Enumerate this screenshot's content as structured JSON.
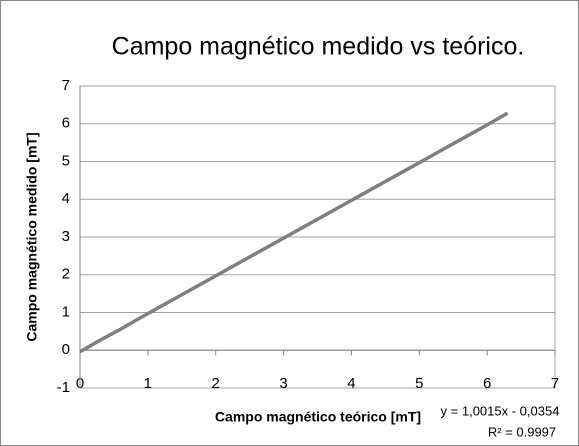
{
  "chart_data": {
    "type": "line",
    "title": "Campo magnético medido vs teórico.",
    "x_label": "Campo magnético teórico [mT]",
    "y_label": "Campo magnético medido [mT]",
    "annotations": [
      "y = 1,0015x - 0,0354",
      "R² = 0.9997"
    ],
    "x": [
      0,
      0.3,
      0.6,
      0.9,
      1.2,
      1.5,
      1.8,
      2.1,
      2.4,
      2.7,
      3.0,
      3.3,
      3.6,
      3.9,
      4.2,
      4.5,
      4.8,
      5.1,
      5.4,
      5.7,
      6.0,
      6.3
    ],
    "series": [
      {
        "name": "Campo magnético medido",
        "color": "#7f7f7f",
        "values": [
          -0.04,
          0.27,
          0.56,
          0.87,
          1.17,
          1.47,
          1.77,
          2.07,
          2.37,
          2.67,
          2.97,
          3.27,
          3.57,
          3.87,
          4.17,
          4.47,
          4.77,
          5.07,
          5.37,
          5.67,
          5.97,
          6.28
        ]
      }
    ],
    "xlim": [
      0,
      7
    ],
    "xticks": [
      0,
      1,
      2,
      3,
      4,
      5,
      6,
      7
    ],
    "ylim": [
      -1,
      7
    ],
    "yticks": [
      -1,
      0,
      1,
      2,
      3,
      4,
      5,
      6,
      7
    ],
    "grid": true
  }
}
